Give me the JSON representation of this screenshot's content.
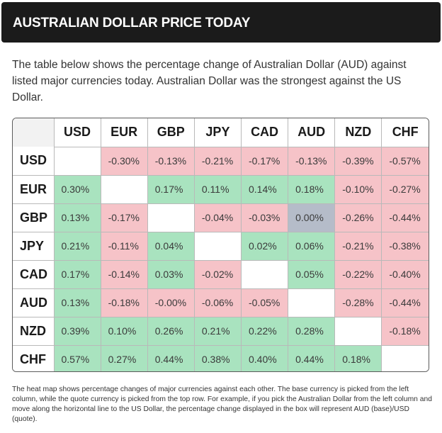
{
  "header": {
    "title": "AUSTRALIAN DOLLAR PRICE TODAY"
  },
  "intro": {
    "text": "The table below shows the percentage change of Australian Dollar (AUD) against listed major currencies today. Australian Dollar was the strongest against the US Dollar."
  },
  "heatmap": {
    "columns": [
      "USD",
      "EUR",
      "GBP",
      "JPY",
      "CAD",
      "AUD",
      "NZD",
      "CHF"
    ],
    "rows": [
      {
        "label": "USD",
        "cells": [
          "",
          "-0.30%",
          "-0.13%",
          "-0.21%",
          "-0.17%",
          "-0.13%",
          "-0.39%",
          "-0.57%"
        ]
      },
      {
        "label": "EUR",
        "cells": [
          "0.30%",
          "",
          "0.17%",
          "0.11%",
          "0.14%",
          "0.18%",
          "-0.10%",
          "-0.27%"
        ]
      },
      {
        "label": "GBP",
        "cells": [
          "0.13%",
          "-0.17%",
          "",
          "-0.04%",
          "-0.03%",
          "0.00%",
          "-0.26%",
          "-0.44%"
        ]
      },
      {
        "label": "JPY",
        "cells": [
          "0.21%",
          "-0.11%",
          "0.04%",
          "",
          "0.02%",
          "0.06%",
          "-0.21%",
          "-0.38%"
        ]
      },
      {
        "label": "CAD",
        "cells": [
          "0.17%",
          "-0.14%",
          "0.03%",
          "-0.02%",
          "",
          "0.05%",
          "-0.22%",
          "-0.40%"
        ]
      },
      {
        "label": "AUD",
        "cells": [
          "0.13%",
          "-0.18%",
          "-0.00%",
          "-0.06%",
          "-0.05%",
          "",
          "-0.28%",
          "-0.44%"
        ]
      },
      {
        "label": "NZD",
        "cells": [
          "0.39%",
          "0.10%",
          "0.26%",
          "0.21%",
          "0.22%",
          "0.28%",
          "",
          "-0.18%"
        ]
      },
      {
        "label": "CHF",
        "cells": [
          "0.57%",
          "0.27%",
          "0.44%",
          "0.38%",
          "0.40%",
          "0.44%",
          "0.18%",
          ""
        ]
      }
    ],
    "colors": {
      "positive": "#a9e3bf",
      "negative": "#f6c3c8",
      "zero": "#b5bcc9"
    }
  },
  "footnote": {
    "text": "The heat map shows percentage changes of major currencies against each other. The base currency is picked from the left column, while the quote currency is picked from the top row. For example, if you pick the Australian Dollar from the left column and move along the horizontal line to the US Dollar, the percentage change displayed in the box will represent AUD (base)/USD (quote)."
  }
}
